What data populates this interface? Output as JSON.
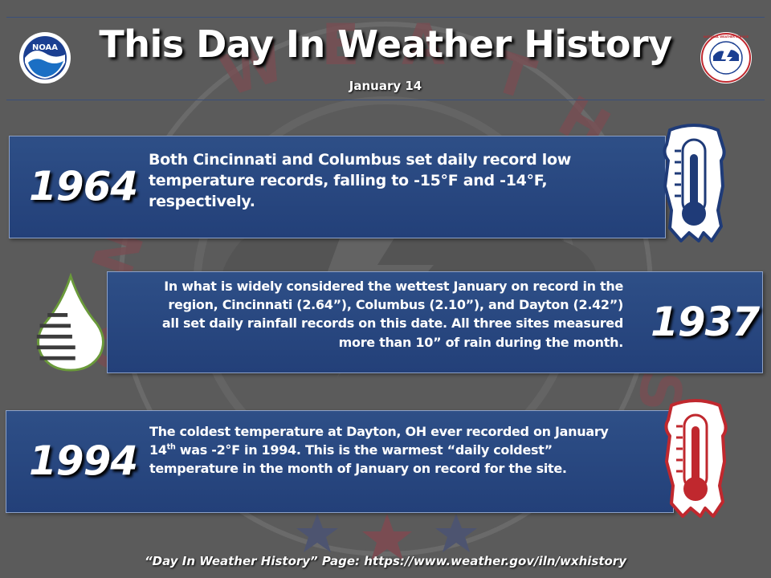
{
  "header": {
    "title": "This Day In Weather History",
    "date": "January 14",
    "left_logo": {
      "text": "NOAA",
      "icon": "noaa-logo"
    },
    "right_logo": {
      "text": "NATIONAL WEATHER SERVICE",
      "icon": "nws-logo"
    }
  },
  "events": [
    {
      "year": "1964",
      "text": "Both Cincinnati and Columbus set daily record low temperature records, falling to -15°F and -14°F, respectively.",
      "icon": "frozen-thermometer-icon"
    },
    {
      "year": "1937",
      "text": "In what is widely considered the wettest January on record in the region, Cincinnati (2.64”), Columbus (2.10”), and Dayton (2.42”) all set daily rainfall records on this date. All three sites measured more than 10” of rain during the month.",
      "icon": "raindrop-icon"
    },
    {
      "year": "1994",
      "text_parts": {
        "before": "The coldest temperature at Dayton, OH ever recorded on January 14",
        "sup": "th",
        "after": " was -2°F in 1994. This is the warmest “daily coldest” temperature in the month of January on record for the site."
      },
      "icon": "warm-thermometer-icon"
    }
  ],
  "footer": {
    "text": "“Day In Weather History” Page: https://www.weather.gov/iln/wxhistory"
  },
  "colors": {
    "background": "#5b5b5b",
    "panel": "#2a4a82",
    "panel_border": "#8ea2c8",
    "frozen_outline": "#1f3b78",
    "warm_outline": "#c0282e"
  }
}
